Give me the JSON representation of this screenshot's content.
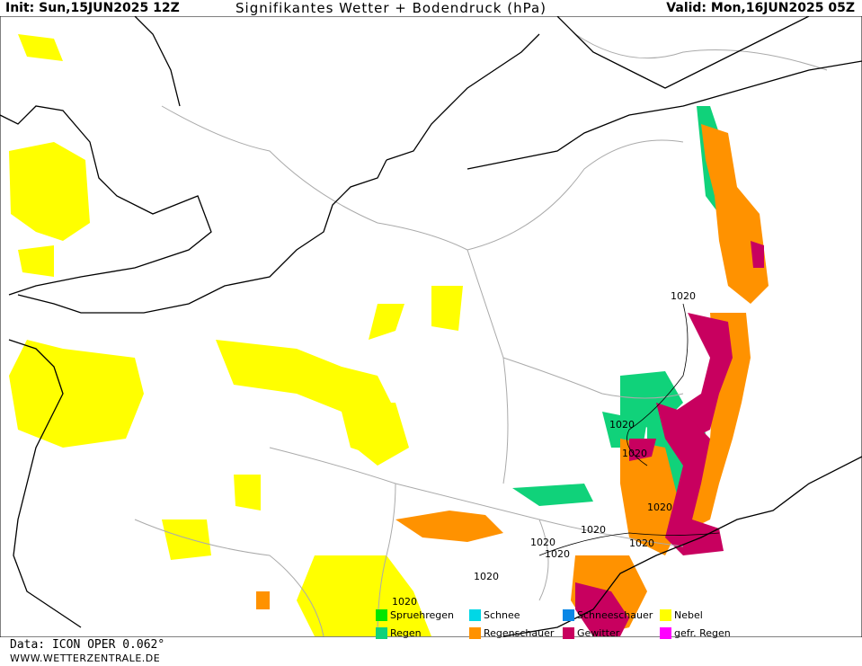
{
  "header": {
    "init": "Init: Sun,15JUN2025 12Z",
    "title": "Signifikantes Wetter + Bodendruck (hPa)",
    "valid": "Valid: Mon,16JUN2025 05Z"
  },
  "isobar_labels": [
    "1020",
    "1020",
    "1020",
    "1020",
    "1020",
    "1020",
    "1020",
    "1020",
    "1020",
    "1020"
  ],
  "legend": [
    {
      "label": "Spruehregen",
      "color": "#00e600"
    },
    {
      "label": "Schnee",
      "color": "#00d7e6"
    },
    {
      "label": "Schneeschauer",
      "color": "#0a87e6"
    },
    {
      "label": "Nebel",
      "color": "#ffff00"
    },
    {
      "label": "Regen",
      "color": "#10d27a"
    },
    {
      "label": "Regenschauer",
      "color": "#ff9200"
    },
    {
      "label": "Gewitter",
      "color": "#c8005f"
    },
    {
      "label": "gefr. Regen",
      "color": "#ff00ff"
    }
  ],
  "colors": {
    "nebel": "#ffff00",
    "regen": "#10d27a",
    "regenschauer": "#ff9200",
    "gewitter": "#c8005f",
    "coast": "#000000",
    "border": "#aaaaaa"
  },
  "footer": {
    "data": "Data: ICON OPER 0.062°",
    "site": "WWW.WETTERZENTRALE.DE"
  }
}
